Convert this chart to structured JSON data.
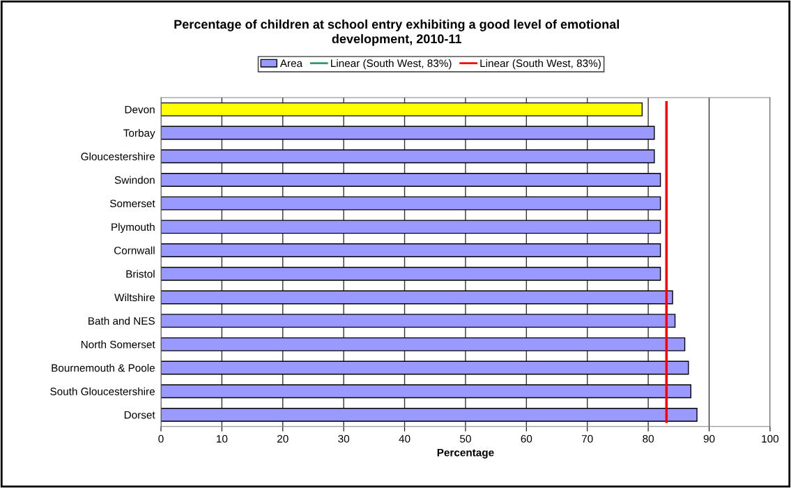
{
  "chart_data": {
    "type": "bar",
    "orientation": "horizontal",
    "title": "Percentage of children at school entry exhibiting a good level of emotional\ndevelopment, 2010-11",
    "xlabel": "Percentage",
    "categories": [
      "Devon",
      "Torbay",
      "Gloucestershire",
      "Swindon",
      "Somerset",
      "Plymouth",
      "Cornwall",
      "Bristol",
      "Wiltshire",
      "Bath and NES",
      "North Somerset",
      "Bournemouth & Poole",
      "South Gloucestershire",
      "Dorset"
    ],
    "series": [
      {
        "name": "Area",
        "color": "#9999ff",
        "colors": [
          "#ffff00",
          "#9999ff",
          "#9999ff",
          "#9999ff",
          "#9999ff",
          "#9999ff",
          "#9999ff",
          "#9999ff",
          "#9999ff",
          "#9999ff",
          "#9999ff",
          "#9999ff",
          "#9999ff",
          "#9999ff"
        ],
        "values": [
          79.0,
          81.0,
          81.0,
          82.0,
          82.0,
          82.0,
          82.0,
          82.0,
          84.0,
          84.4,
          86.0,
          86.6,
          87.0,
          88.0
        ]
      }
    ],
    "ref_lines": [
      {
        "axis": "x",
        "value": null,
        "label": "Linear (South West, 83%)",
        "color": "#339966"
      },
      {
        "axis": "x",
        "value": 83,
        "label": "Linear (South West, 83%)",
        "color": "#ff0000"
      }
    ],
    "xlim": [
      0,
      100
    ],
    "xticks": [
      0,
      10,
      20,
      30,
      40,
      50,
      60,
      70,
      80,
      90,
      100
    ],
    "grid": "x",
    "legend": "top"
  }
}
